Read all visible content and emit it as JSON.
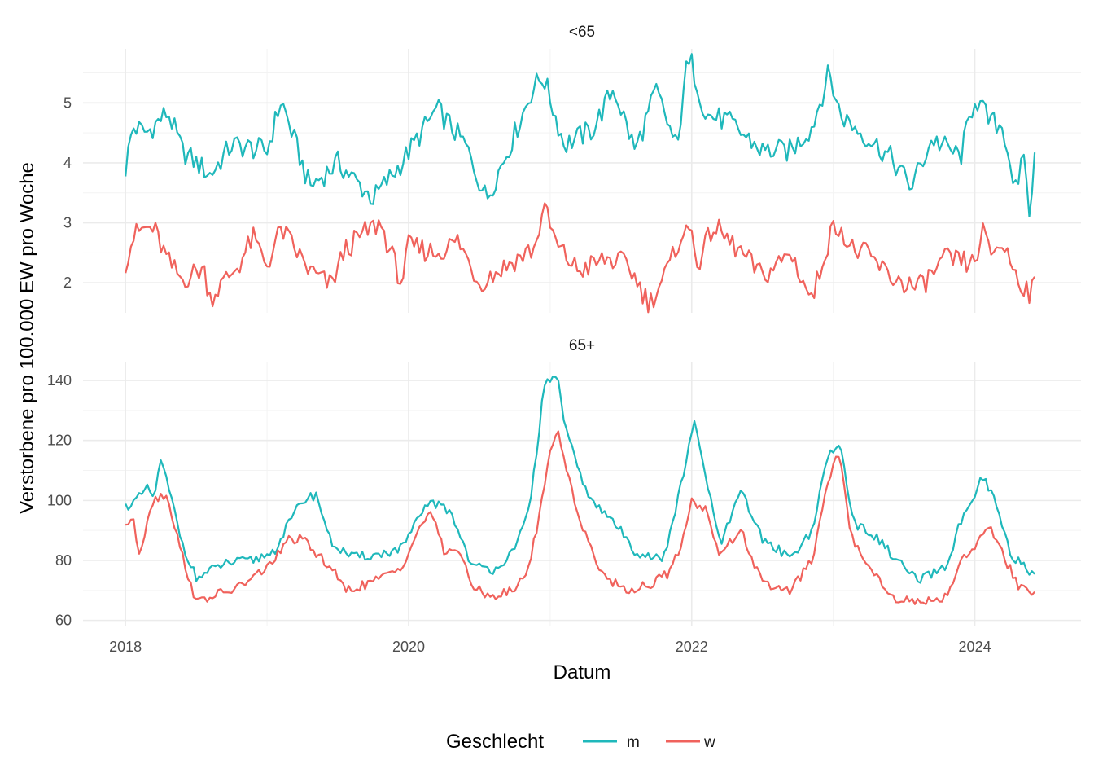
{
  "chart_data": {
    "type": "line",
    "xlabel": "Datum",
    "ylabel": "Verstorbene pro 100.000 EW pro Woche",
    "legend": {
      "title": "Geschlecht",
      "position": "bottom",
      "entries": [
        {
          "name": "m",
          "color": "#1fb8bb"
        },
        {
          "name": "w",
          "color": "#f0625c"
        }
      ]
    },
    "x_ticks": [
      "2018",
      "2020",
      "2022",
      "2024"
    ],
    "x_range": [
      2017.7,
      2024.75
    ],
    "grid": true,
    "panels": [
      {
        "title": "<65",
        "ylim": [
          1.5,
          5.9
        ],
        "y_ticks": [
          2,
          3,
          4,
          5
        ],
        "series": [
          {
            "name": "m",
            "color": "#1fb8bb",
            "x_start": 2018.0,
            "x_end": 2024.42,
            "keypoints": [
              [
                2018.0,
                3.9
              ],
              [
                2018.05,
                4.6
              ],
              [
                2018.15,
                4.5
              ],
              [
                2018.3,
                4.85
              ],
              [
                2018.4,
                4.2
              ],
              [
                2018.6,
                3.8
              ],
              [
                2018.75,
                4.3
              ],
              [
                2019.0,
                4.2
              ],
              [
                2019.1,
                5.05
              ],
              [
                2019.3,
                3.6
              ],
              [
                2019.5,
                4.0
              ],
              [
                2019.75,
                3.4
              ],
              [
                2019.95,
                4.0
              ],
              [
                2020.2,
                4.9
              ],
              [
                2020.4,
                4.3
              ],
              [
                2020.55,
                3.4
              ],
              [
                2020.7,
                4.2
              ],
              [
                2020.88,
                5.25
              ],
              [
                2020.95,
                5.45
              ],
              [
                2021.1,
                4.3
              ],
              [
                2021.3,
                4.55
              ],
              [
                2021.45,
                5.25
              ],
              [
                2021.6,
                4.2
              ],
              [
                2021.75,
                5.2
              ],
              [
                2021.9,
                4.2
              ],
              [
                2021.95,
                5.5
              ],
              [
                2022.0,
                5.65
              ],
              [
                2022.1,
                4.8
              ],
              [
                2022.25,
                4.7
              ],
              [
                2022.5,
                4.2
              ],
              [
                2022.7,
                4.2
              ],
              [
                2022.85,
                4.6
              ],
              [
                2022.97,
                5.5
              ],
              [
                2023.05,
                4.8
              ],
              [
                2023.2,
                4.5
              ],
              [
                2023.4,
                4.1
              ],
              [
                2023.55,
                3.6
              ],
              [
                2023.7,
                4.4
              ],
              [
                2023.9,
                4.1
              ],
              [
                2024.0,
                5.1
              ],
              [
                2024.1,
                4.7
              ],
              [
                2024.2,
                4.6
              ],
              [
                2024.3,
                3.4
              ],
              [
                2024.35,
                4.3
              ],
              [
                2024.38,
                3.0
              ],
              [
                2024.42,
                4.05
              ]
            ]
          },
          {
            "name": "w",
            "color": "#f0625c",
            "x_start": 2018.0,
            "x_end": 2024.42,
            "keypoints": [
              [
                2018.0,
                2.35
              ],
              [
                2018.05,
                2.75
              ],
              [
                2018.12,
                2.9
              ],
              [
                2018.2,
                2.9
              ],
              [
                2018.3,
                2.35
              ],
              [
                2018.4,
                2.05
              ],
              [
                2018.55,
                2.25
              ],
              [
                2018.6,
                1.75
              ],
              [
                2018.8,
                2.3
              ],
              [
                2018.9,
                2.75
              ],
              [
                2019.0,
                2.3
              ],
              [
                2019.1,
                2.9
              ],
              [
                2019.3,
                2.2
              ],
              [
                2019.45,
                1.95
              ],
              [
                2019.55,
                2.55
              ],
              [
                2019.7,
                2.85
              ],
              [
                2019.8,
                3.0
              ],
              [
                2019.95,
                2.0
              ],
              [
                2020.0,
                2.6
              ],
              [
                2020.2,
                2.5
              ],
              [
                2020.35,
                2.7
              ],
              [
                2020.5,
                2.0
              ],
              [
                2020.7,
                2.3
              ],
              [
                2020.9,
                2.6
              ],
              [
                2020.95,
                3.3
              ],
              [
                2021.05,
                2.6
              ],
              [
                2021.2,
                2.2
              ],
              [
                2021.4,
                2.4
              ],
              [
                2021.55,
                2.3
              ],
              [
                2021.7,
                1.65
              ],
              [
                2021.85,
                2.3
              ],
              [
                2021.92,
                2.8
              ],
              [
                2022.0,
                2.85
              ],
              [
                2022.05,
                2.3
              ],
              [
                2022.15,
                2.95
              ],
              [
                2022.35,
                2.5
              ],
              [
                2022.5,
                2.1
              ],
              [
                2022.7,
                2.5
              ],
              [
                2022.85,
                1.7
              ],
              [
                2022.95,
                2.6
              ],
              [
                2023.0,
                2.9
              ],
              [
                2023.05,
                3.0
              ],
              [
                2023.1,
                2.6
              ],
              [
                2023.25,
                2.45
              ],
              [
                2023.4,
                2.1
              ],
              [
                2023.6,
                1.9
              ],
              [
                2023.8,
                2.4
              ],
              [
                2024.0,
                2.3
              ],
              [
                2024.05,
                2.9
              ],
              [
                2024.1,
                2.5
              ],
              [
                2024.2,
                2.65
              ],
              [
                2024.3,
                2.1
              ],
              [
                2024.4,
                1.8
              ],
              [
                2024.42,
                2.0
              ]
            ]
          }
        ]
      },
      {
        "title": "65+",
        "ylim": [
          58,
          146
        ],
        "y_ticks": [
          60,
          80,
          100,
          120,
          140
        ],
        "series": [
          {
            "name": "m",
            "color": "#1fb8bb",
            "x_start": 2018.0,
            "x_end": 2024.42,
            "keypoints": [
              [
                2018.0,
                98
              ],
              [
                2018.08,
                100
              ],
              [
                2018.15,
                104
              ],
              [
                2018.2,
                101
              ],
              [
                2018.25,
                113
              ],
              [
                2018.3,
                105
              ],
              [
                2018.4,
                86
              ],
              [
                2018.5,
                74
              ],
              [
                2018.7,
                79
              ],
              [
                2018.9,
                80
              ],
              [
                2019.05,
                83
              ],
              [
                2019.15,
                92
              ],
              [
                2019.25,
                100
              ],
              [
                2019.35,
                102
              ],
              [
                2019.45,
                86
              ],
              [
                2019.6,
                81
              ],
              [
                2019.8,
                82
              ],
              [
                2019.95,
                84
              ],
              [
                2020.05,
                92
              ],
              [
                2020.15,
                100
              ],
              [
                2020.3,
                96
              ],
              [
                2020.45,
                78
              ],
              [
                2020.6,
                77
              ],
              [
                2020.75,
                83
              ],
              [
                2020.85,
                97
              ],
              [
                2020.9,
                115
              ],
              [
                2020.95,
                135
              ],
              [
                2020.98,
                140
              ],
              [
                2021.05,
                142
              ],
              [
                2021.1,
                125
              ],
              [
                2021.2,
                110
              ],
              [
                2021.3,
                99
              ],
              [
                2021.45,
                93
              ],
              [
                2021.6,
                83
              ],
              [
                2021.8,
                80
              ],
              [
                2021.9,
                100
              ],
              [
                2021.97,
                115
              ],
              [
                2022.02,
                126
              ],
              [
                2022.1,
                108
              ],
              [
                2022.2,
                85
              ],
              [
                2022.35,
                103
              ],
              [
                2022.5,
                87
              ],
              [
                2022.7,
                81
              ],
              [
                2022.85,
                90
              ],
              [
                2022.97,
                116
              ],
              [
                2023.05,
                118
              ],
              [
                2023.15,
                92
              ],
              [
                2023.3,
                88
              ],
              [
                2023.45,
                80
              ],
              [
                2023.6,
                73
              ],
              [
                2023.8,
                78
              ],
              [
                2023.9,
                93
              ],
              [
                2024.0,
                100
              ],
              [
                2024.05,
                108
              ],
              [
                2024.15,
                99
              ],
              [
                2024.25,
                82
              ],
              [
                2024.35,
                78
              ],
              [
                2024.42,
                75
              ]
            ]
          },
          {
            "name": "w",
            "color": "#f0625c",
            "x_start": 2018.0,
            "x_end": 2024.42,
            "keypoints": [
              [
                2018.0,
                92
              ],
              [
                2018.05,
                94
              ],
              [
                2018.1,
                82
              ],
              [
                2018.18,
                99
              ],
              [
                2018.25,
                102
              ],
              [
                2018.3,
                101
              ],
              [
                2018.38,
                85
              ],
              [
                2018.5,
                66
              ],
              [
                2018.6,
                68
              ],
              [
                2018.75,
                70
              ],
              [
                2018.9,
                74
              ],
              [
                2019.05,
                80
              ],
              [
                2019.15,
                87
              ],
              [
                2019.25,
                87
              ],
              [
                2019.35,
                82
              ],
              [
                2019.45,
                78
              ],
              [
                2019.55,
                70
              ],
              [
                2019.7,
                72
              ],
              [
                2019.85,
                75
              ],
              [
                2019.95,
                78
              ],
              [
                2020.05,
                88
              ],
              [
                2020.15,
                97
              ],
              [
                2020.25,
                83
              ],
              [
                2020.35,
                84
              ],
              [
                2020.45,
                71
              ],
              [
                2020.6,
                68
              ],
              [
                2020.75,
                70
              ],
              [
                2020.85,
                78
              ],
              [
                2020.92,
                94
              ],
              [
                2020.98,
                112
              ],
              [
                2021.05,
                124
              ],
              [
                2021.12,
                110
              ],
              [
                2021.2,
                95
              ],
              [
                2021.3,
                82
              ],
              [
                2021.4,
                74
              ],
              [
                2021.55,
                70
              ],
              [
                2021.7,
                72
              ],
              [
                2021.85,
                76
              ],
              [
                2021.95,
                89
              ],
              [
                2022.0,
                100
              ],
              [
                2022.1,
                97
              ],
              [
                2022.2,
                82
              ],
              [
                2022.35,
                90
              ],
              [
                2022.5,
                72
              ],
              [
                2022.7,
                70
              ],
              [
                2022.85,
                80
              ],
              [
                2022.92,
                96
              ],
              [
                2023.0,
                113
              ],
              [
                2023.05,
                115
              ],
              [
                2023.12,
                88
              ],
              [
                2023.25,
                79
              ],
              [
                2023.4,
                68
              ],
              [
                2023.6,
                66
              ],
              [
                2023.8,
                68
              ],
              [
                2023.9,
                80
              ],
              [
                2024.0,
                85
              ],
              [
                2024.1,
                91
              ],
              [
                2024.2,
                82
              ],
              [
                2024.3,
                72
              ],
              [
                2024.42,
                68
              ]
            ]
          }
        ]
      }
    ]
  }
}
